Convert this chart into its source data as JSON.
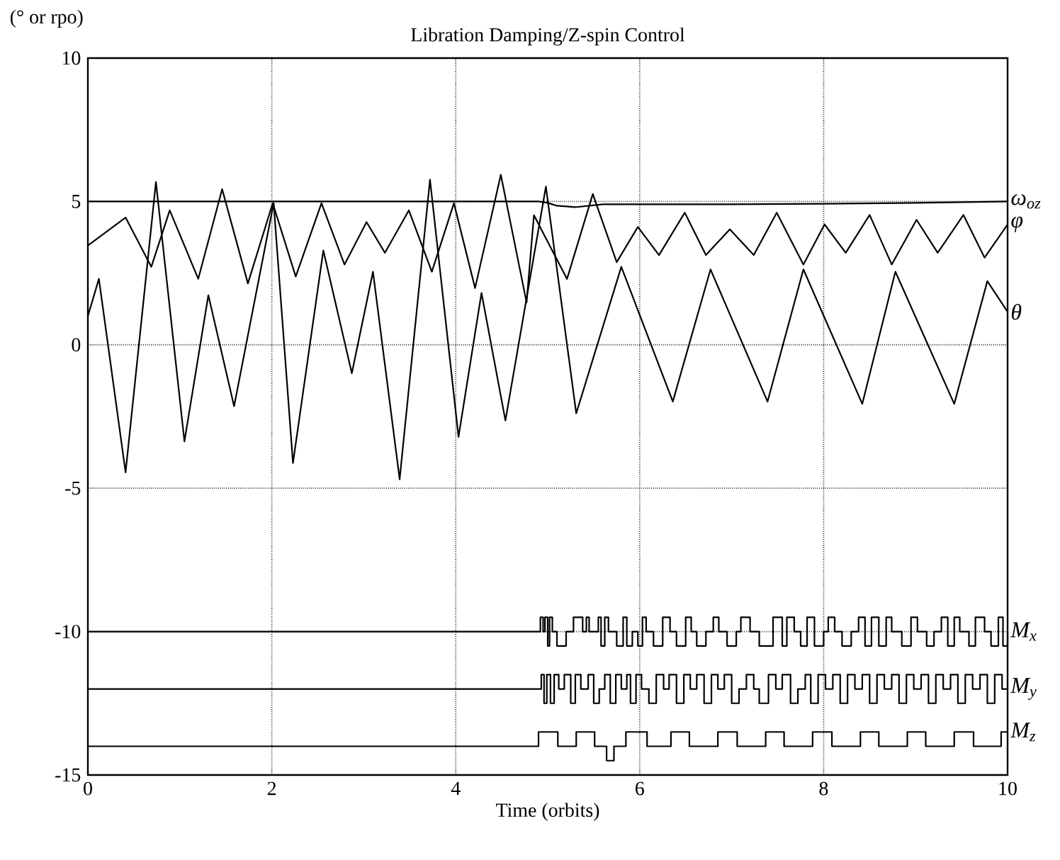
{
  "chart_data": {
    "type": "line",
    "title": "Libration Damping/Z-spin Control",
    "ylabel": "(° or rpo)",
    "xlabel": "Time (orbits)",
    "xlim": [
      0,
      10
    ],
    "ylim": [
      -15,
      10
    ],
    "xticks": [
      0,
      2,
      4,
      6,
      8,
      10
    ],
    "yticks": [
      -15,
      -10,
      -5,
      0,
      5,
      10
    ],
    "grid": true,
    "series": [
      {
        "name": "ω$_{oz}$",
        "color": "#000000",
        "x": [
          0,
          4.9,
          5.0,
          5.1,
          5.3,
          5.6,
          6,
          7,
          8,
          9,
          10
        ],
        "values": [
          5,
          5,
          4.95,
          4.85,
          4.8,
          4.9,
          4.9,
          4.9,
          4.92,
          4.95,
          5.0
        ]
      },
      {
        "name": "φ",
        "color": "#000000",
        "x": [
          0,
          0.41,
          0.69,
          0.89,
          1.2,
          1.46,
          1.74,
          2.01,
          2.26,
          2.54,
          2.79,
          3.03,
          3.23,
          3.49,
          3.74,
          3.98,
          4.21,
          4.49,
          4.77,
          4.85,
          5.21,
          5.49,
          5.75,
          5.98,
          6.21,
          6.49,
          6.72,
          6.98,
          7.24,
          7.49,
          7.78,
          8.01,
          8.24,
          8.5,
          8.74,
          9.01,
          9.24,
          9.52,
          9.75,
          10
        ],
        "values": [
          3.46,
          4.44,
          2.72,
          4.69,
          2.3,
          5.43,
          2.14,
          4.94,
          2.38,
          4.94,
          2.8,
          4.28,
          3.21,
          4.69,
          2.55,
          4.94,
          1.98,
          5.93,
          1.48,
          4.52,
          2.3,
          5.26,
          2.88,
          4.11,
          3.13,
          4.61,
          3.13,
          4.03,
          3.13,
          4.61,
          2.8,
          4.2,
          3.21,
          4.53,
          2.8,
          4.36,
          3.21,
          4.53,
          3.04,
          4.2
        ]
      },
      {
        "name": "θ",
        "color": "#000000",
        "x": [
          0,
          0.12,
          0.41,
          0.74,
          1.05,
          1.31,
          1.59,
          2.02,
          2.23,
          2.56,
          2.87,
          3.1,
          3.39,
          3.72,
          4.03,
          4.28,
          4.54,
          4.98,
          5.31,
          5.8,
          6.36,
          6.77,
          7.39,
          7.78,
          8.42,
          8.78,
          9.42,
          9.78,
          10
        ],
        "values": [
          1.0,
          2.3,
          -4.45,
          5.68,
          -3.37,
          1.73,
          -2.14,
          4.94,
          -4.12,
          3.29,
          -0.99,
          2.55,
          -4.69,
          5.76,
          -3.21,
          1.81,
          -2.64,
          5.52,
          -2.39,
          2.72,
          -1.98,
          2.63,
          -1.98,
          2.63,
          -2.06,
          2.55,
          -2.06,
          2.22,
          1.15
        ]
      },
      {
        "name": "M$_{x}$",
        "type": "step",
        "color": "#000000",
        "x": [
          0,
          4.92,
          4.95,
          4.97,
          5.0,
          5.02,
          5.05,
          5.1,
          5.2,
          5.28,
          5.38,
          5.42,
          5.45,
          5.55,
          5.58,
          5.62,
          5.66,
          5.75,
          5.82,
          5.86,
          5.92,
          5.98,
          6.03,
          6.07,
          6.15,
          6.25,
          6.33,
          6.4,
          6.5,
          6.56,
          6.62,
          6.72,
          6.8,
          6.86,
          6.95,
          7.05,
          7.1,
          7.2,
          7.3,
          7.45,
          7.55,
          7.6,
          7.68,
          7.75,
          7.82,
          7.9,
          8.0,
          8.05,
          8.12,
          8.2,
          8.3,
          8.38,
          8.45,
          8.52,
          8.6,
          8.68,
          8.74,
          8.85,
          8.95,
          9.02,
          9.12,
          9.2,
          9.28,
          9.35,
          9.42,
          9.48,
          9.58,
          9.65,
          9.75,
          9.82,
          9.9,
          9.95,
          10
        ],
        "values": [
          -10,
          -9.5,
          -10,
          -9.5,
          -10.5,
          -9.5,
          -10,
          -10.5,
          -10,
          -9.5,
          -10,
          -9.5,
          -10,
          -9.5,
          -10.5,
          -9.5,
          -10,
          -10.5,
          -9.5,
          -10.5,
          -10,
          -10.5,
          -9.5,
          -10,
          -10.5,
          -9.5,
          -10,
          -10.5,
          -9.5,
          -10,
          -10.5,
          -10,
          -9.5,
          -10,
          -10.5,
          -10,
          -9.5,
          -10,
          -10.5,
          -9.5,
          -10.5,
          -9.5,
          -10,
          -10.5,
          -9.5,
          -10.5,
          -10,
          -9.5,
          -10,
          -10.5,
          -10,
          -9.5,
          -10.5,
          -9.5,
          -10.5,
          -9.5,
          -10,
          -10.5,
          -9.5,
          -10,
          -10.5,
          -10,
          -9.5,
          -10.5,
          -9.5,
          -10,
          -10.5,
          -9.5,
          -10,
          -10.5,
          -9.5,
          -10.5,
          -10
        ]
      },
      {
        "name": "M$_{y}$",
        "type": "step",
        "color": "#000000",
        "x": [
          0,
          4.93,
          4.96,
          4.99,
          5.03,
          5.07,
          5.12,
          5.18,
          5.25,
          5.3,
          5.36,
          5.44,
          5.5,
          5.56,
          5.62,
          5.68,
          5.74,
          5.8,
          5.86,
          5.9,
          5.96,
          6.02,
          6.1,
          6.18,
          6.26,
          6.32,
          6.4,
          6.48,
          6.55,
          6.62,
          6.7,
          6.78,
          6.85,
          6.92,
          7.0,
          7.08,
          7.16,
          7.24,
          7.3,
          7.4,
          7.48,
          7.55,
          7.64,
          7.72,
          7.8,
          7.86,
          7.94,
          8.02,
          8.1,
          8.18,
          8.26,
          8.34,
          8.42,
          8.5,
          8.58,
          8.66,
          8.74,
          8.82,
          8.9,
          8.98,
          9.06,
          9.14,
          9.22,
          9.3,
          9.38,
          9.46,
          9.54,
          9.62,
          9.7,
          9.78,
          9.86,
          9.94,
          10
        ],
        "values": [
          -12,
          -11.5,
          -12.5,
          -11.5,
          -12.5,
          -11.5,
          -12,
          -11.5,
          -12.5,
          -11.5,
          -12,
          -11.5,
          -12.5,
          -12,
          -11.5,
          -12.5,
          -11.5,
          -12,
          -11.5,
          -12.5,
          -11.5,
          -12,
          -12.5,
          -11.5,
          -12,
          -11.5,
          -12.5,
          -11.5,
          -12,
          -11.5,
          -12.5,
          -11.5,
          -12,
          -11.5,
          -12.5,
          -12,
          -11.5,
          -12,
          -12.5,
          -11.5,
          -12,
          -11.5,
          -12.5,
          -12,
          -11.5,
          -12.5,
          -11.5,
          -12,
          -11.5,
          -12.5,
          -11.5,
          -12,
          -11.5,
          -12.5,
          -11.5,
          -12,
          -11.5,
          -12.5,
          -11.5,
          -12,
          -11.5,
          -12.5,
          -11.5,
          -12,
          -11.5,
          -12.5,
          -11.5,
          -12,
          -11.5,
          -12.5,
          -11.5,
          -12,
          -12
        ]
      },
      {
        "name": "M$_{z}$",
        "type": "step",
        "color": "#000000",
        "x": [
          0,
          4.9,
          5.11,
          5.31,
          5.51,
          5.64,
          5.72,
          5.85,
          6.08,
          6.34,
          6.54,
          6.85,
          7.06,
          7.37,
          7.57,
          7.88,
          8.09,
          8.4,
          8.6,
          8.91,
          9.11,
          9.42,
          9.63,
          9.93,
          10
        ],
        "values": [
          -14,
          -13.5,
          -14,
          -13.5,
          -14,
          -14.5,
          -14,
          -13.5,
          -14,
          -13.5,
          -14,
          -13.5,
          -14,
          -13.5,
          -14,
          -13.5,
          -14,
          -13.5,
          -14,
          -13.5,
          -14,
          -13.5,
          -14,
          -13.5,
          -13.5
        ]
      }
    ]
  }
}
